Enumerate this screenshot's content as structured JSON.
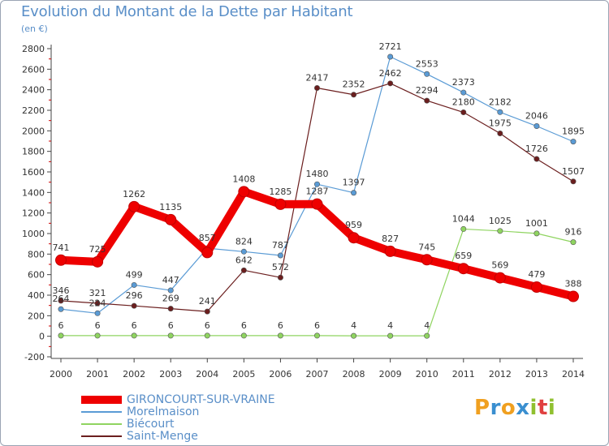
{
  "header": {
    "title": "Evolution du Montant de la Dette par Habitant",
    "unit": "(en €)"
  },
  "logo": {
    "letters": [
      "P",
      "r",
      "o",
      "x",
      "i",
      "t",
      "i"
    ],
    "colors": [
      "#f0a020",
      "#3a8fd0",
      "#f0a020",
      "#3a8fd0",
      "#90c030",
      "#e04040",
      "#90c030"
    ]
  },
  "chart_data": {
    "type": "line",
    "title": "Evolution du Montant de la Dette par Habitant",
    "ylabel": "(en €)",
    "x": [
      2000,
      2001,
      2002,
      2003,
      2004,
      2005,
      2006,
      2007,
      2008,
      2009,
      2010,
      2011,
      2012,
      2013,
      2014
    ],
    "ylim": [
      -200,
      2800
    ],
    "yticks": [
      -200,
      0,
      200,
      400,
      600,
      800,
      1000,
      1200,
      1400,
      1600,
      1800,
      2000,
      2200,
      2400,
      2600,
      2800
    ],
    "grid": false,
    "legend_position": "bottom-left",
    "series": [
      {
        "name": "GIRONCOURT-SUR-VRAINE",
        "color": "#ee0000",
        "emphasis": true,
        "values": [
          741,
          725,
          1262,
          1135,
          815,
          1408,
          1285,
          1287,
          959,
          827,
          745,
          659,
          569,
          479,
          388
        ],
        "labels": [
          "741",
          "725",
          "1262",
          "1135",
          "",
          "1408",
          "1285",
          "1287",
          "959",
          "827",
          "745",
          "659",
          "569",
          "479",
          "388"
        ]
      },
      {
        "name": "Morelmaison",
        "color": "#5a9bd5",
        "values": [
          264,
          224,
          499,
          447,
          857,
          824,
          787,
          1480,
          1397,
          2721,
          2553,
          2373,
          2182,
          2046,
          1895
        ],
        "labels": [
          "264",
          "224",
          "499",
          "447",
          "857",
          "824",
          "787",
          "1480",
          "1397",
          "2721",
          "2553",
          "2373",
          "2182",
          "2046",
          "1895"
        ]
      },
      {
        "name": "Biécourt",
        "color": "#8fd460",
        "values": [
          6,
          6,
          6,
          6,
          6,
          6,
          6,
          6,
          4,
          4,
          4,
          1044,
          1025,
          1001,
          916
        ],
        "labels": [
          "6",
          "6",
          "6",
          "6",
          "6",
          "6",
          "6",
          "6",
          "4",
          "4",
          "4",
          "1044",
          "1025",
          "1001",
          "916"
        ]
      },
      {
        "name": "Saint-Menge",
        "color": "#6b1e1e",
        "values": [
          346,
          321,
          296,
          269,
          241,
          642,
          572,
          2417,
          2352,
          2462,
          2294,
          2180,
          1975,
          1726,
          1507
        ],
        "labels": [
          "346",
          "321",
          "296",
          "269",
          "241",
          "642",
          "572",
          "2417",
          "2352",
          "2462",
          "2294",
          "2180",
          "1975",
          "1726",
          "1507"
        ]
      }
    ]
  }
}
